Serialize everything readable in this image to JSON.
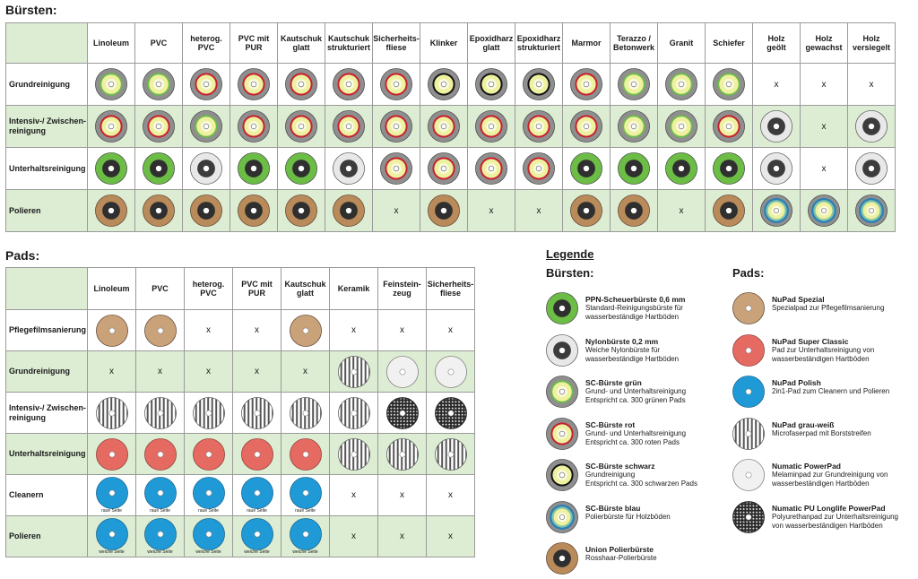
{
  "buersten_section": {
    "title": "Bürsten:",
    "columns": [
      "Linoleum",
      "PVC",
      "heterog.\nPVC",
      "PVC mit\nPUR",
      "Kautschuk\nglatt",
      "Kautschuk\nstrukturiert",
      "Sicherheits-\nfliese",
      "Klinker",
      "Epoxidharz\nglatt",
      "Epoxidharz\nstrukturiert",
      "Marmor",
      "Terazzo /\nBetonwerk",
      "Granit",
      "Schiefer",
      "Holz\ngeölt",
      "Holz\ngewachst",
      "Holz\nversiegelt"
    ],
    "rows": [
      {
        "label": "Grundreinigung",
        "cells": [
          "sc_gruen",
          "sc_gruen",
          "sc_rot",
          "sc_rot",
          "sc_rot",
          "sc_rot",
          "sc_rot",
          "sc_schwarz",
          "sc_schwarz",
          "sc_schwarz",
          "sc_rot",
          "sc_gruen",
          "sc_gruen",
          "sc_gruen",
          "x",
          "x",
          "x"
        ]
      },
      {
        "label": "Intensiv-/ Zwischen-\nreinigung",
        "cells": [
          "sc_rot",
          "sc_rot",
          "sc_gruen",
          "sc_rot",
          "sc_rot",
          "sc_rot",
          "sc_rot",
          "sc_rot",
          "sc_rot",
          "sc_rot",
          "sc_rot",
          "sc_gruen",
          "sc_gruen",
          "sc_rot",
          "nylon",
          "x",
          "nylon"
        ]
      },
      {
        "label": "Unterhaltsreinigung",
        "cells": [
          "ppn",
          "ppn",
          "nylon",
          "ppn",
          "ppn",
          "nylon",
          "sc_rot",
          "sc_rot",
          "sc_rot",
          "sc_rot",
          "ppn",
          "ppn",
          "ppn",
          "ppn",
          "nylon",
          "x",
          "nylon"
        ]
      },
      {
        "label": "Polieren",
        "cells": [
          "union",
          "union",
          "union",
          "union",
          "union",
          "union",
          "x",
          "union",
          "x",
          "x",
          "union",
          "union",
          "x",
          "union",
          "sc_blau",
          "sc_blau",
          "sc_blau"
        ]
      }
    ]
  },
  "pads_section": {
    "title": "Pads:",
    "columns": [
      "Linoleum",
      "PVC",
      "heterog.\nPVC",
      "PVC mit\nPUR",
      "Kautschuk\nglatt",
      "Keramik",
      "Feinstein-\nzeug",
      "Sicherheits-\nfliese"
    ],
    "rows": [
      {
        "label": "Pflegefilmsanierung",
        "cells": [
          "spezial",
          "spezial",
          "x",
          "x",
          "spezial",
          "x",
          "x",
          "x"
        ],
        "sublabel": ""
      },
      {
        "label": "Grundreinigung",
        "cells": [
          "x",
          "x",
          "x",
          "x",
          "x",
          "grauweiss",
          "powerpad",
          "powerpad"
        ],
        "sublabel": ""
      },
      {
        "label": "Intensiv-/ Zwischen-\nreinigung",
        "cells": [
          "grauweiss",
          "grauweiss",
          "grauweiss",
          "grauweiss",
          "grauweiss",
          "grauweiss",
          "longlife",
          "longlife"
        ],
        "sublabel": ""
      },
      {
        "label": "Unterhaltsreinigung",
        "cells": [
          "superclassic",
          "superclassic",
          "superclassic",
          "superclassic",
          "superclassic",
          "grauweiss",
          "grauweiss",
          "grauweiss"
        ],
        "sublabel": ""
      },
      {
        "label": "Cleanern",
        "cells": [
          "polish",
          "polish",
          "polish",
          "polish",
          "polish",
          "x",
          "x",
          "x"
        ],
        "sublabel": "raue Seite"
      },
      {
        "label": "Polieren",
        "cells": [
          "polish",
          "polish",
          "polish",
          "polish",
          "polish",
          "x",
          "x",
          "x"
        ],
        "sublabel": "weiche Seite"
      }
    ]
  },
  "x_mark": "x",
  "legend": {
    "title": "Legende",
    "buersten_head": "Bürsten:",
    "pads_head": "Pads:",
    "buersten": [
      {
        "key": "ppn",
        "name": "PPN-Scheuerbürste 0,6 mm",
        "lines": [
          "Standard-Reinigungsbürste für",
          "wasserbeständige Hartböden"
        ]
      },
      {
        "key": "nylon",
        "name": "Nylonbürste 0,2 mm",
        "lines": [
          "Weiche Nylonbürste für",
          "wasserbeständige Hartböden"
        ]
      },
      {
        "key": "sc_gruen",
        "name": "SC-Bürste grün",
        "lines": [
          "Grund- und Unterhaltsreinigung",
          "Entspricht ca. 300 grünen Pads"
        ]
      },
      {
        "key": "sc_rot",
        "name": "SC-Bürste rot",
        "lines": [
          "Grund- und Unterhaltsreinigung",
          "Entspricht ca. 300 roten Pads"
        ]
      },
      {
        "key": "sc_schwarz",
        "name": "SC-Bürste schwarz",
        "lines": [
          "Grundreinigung",
          "Entspricht ca. 300 schwarzen Pads"
        ]
      },
      {
        "key": "sc_blau",
        "name": "SC-Bürste blau",
        "lines": [
          "Polierbürste für Holzböden"
        ]
      },
      {
        "key": "union",
        "name": "Union Polierbürste",
        "lines": [
          "Rosshaar-Polierbürste"
        ]
      }
    ],
    "pads": [
      {
        "key": "spezial",
        "name": "NuPad Spezial",
        "lines": [
          "Spezialpad zur Pflegefilmsanierung"
        ]
      },
      {
        "key": "superclassic",
        "name": "NuPad Super Classic",
        "lines": [
          "Pad zur Unterhaltsreinigung von",
          "wasserbeständigen Hartböden"
        ]
      },
      {
        "key": "polish",
        "name": "NuPad Polish",
        "lines": [
          "2in1-Pad zum Cleanern und Polieren"
        ]
      },
      {
        "key": "grauweiss",
        "name": "NuPad grau-weiß",
        "lines": [
          "Microfaserpad mit Borststreifen"
        ]
      },
      {
        "key": "powerpad",
        "name": "Numatic PowerPad",
        "lines": [
          "Melaminpad zur Grundreinigung von",
          "wasserbeständigen Hartböden"
        ]
      },
      {
        "key": "longlife",
        "name": "Numatic PU Longlife PowerPad",
        "lines": [
          "Polyurethanpad zur Unterhaltsreinigung",
          "von wasserbeständigen Hartböden"
        ]
      }
    ]
  },
  "colors": {
    "grid_border": "#9a9a9a",
    "row_tint": "#dcedd3",
    "ppn_green": "#6cbd45",
    "sc_yellow": "#eef1a0",
    "sc_red": "#c8202e",
    "union_brown": "#b98a5a",
    "polish_blue": "#1f9ad6",
    "superclassic_red": "#e56a62",
    "spezial_tan": "#c9a27a"
  }
}
